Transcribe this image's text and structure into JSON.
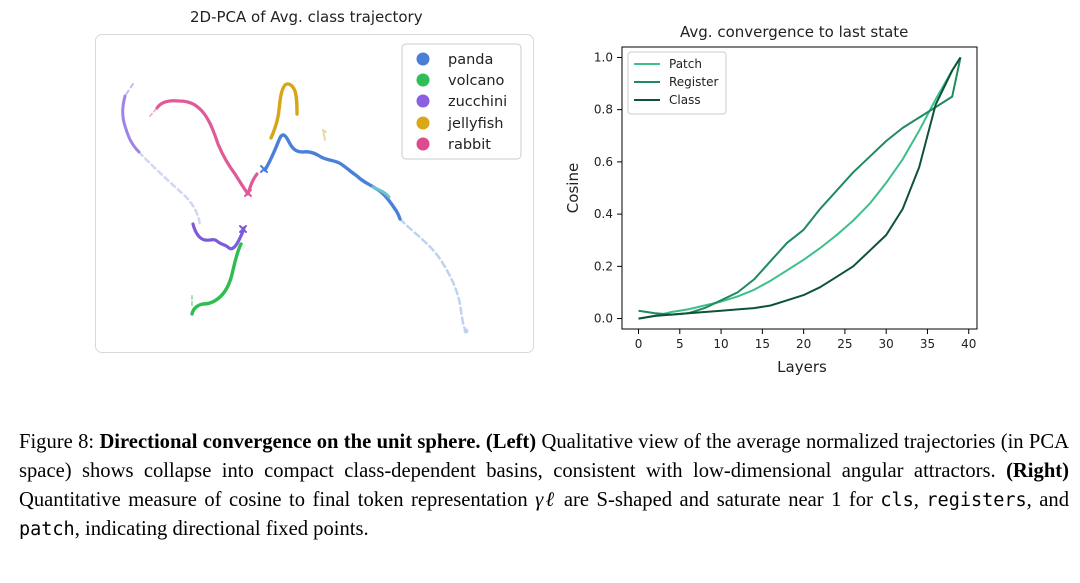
{
  "left_panel": {
    "title": "2D-PCA of Avg. class trajectory",
    "legend": [
      {
        "label": "panda",
        "color": "#4a7fd6"
      },
      {
        "label": "volcano",
        "color": "#2ebf57"
      },
      {
        "label": "zucchini",
        "color": "#8a5fe0"
      },
      {
        "label": "jellyfish",
        "color": "#d9a817"
      },
      {
        "label": "rabbit",
        "color": "#df4a8e"
      }
    ]
  },
  "chart_data": {
    "type": "line",
    "title": "Avg. convergence to last state",
    "xlabel": "Layers",
    "ylabel": "Cosine",
    "xlim": [
      -2,
      41
    ],
    "ylim": [
      -0.04,
      1.04
    ],
    "xticks": [
      "0",
      "5",
      "10",
      "15",
      "20",
      "25",
      "30",
      "35",
      "40"
    ],
    "yticks": [
      "0.0",
      "0.2",
      "0.4",
      "0.6",
      "0.8",
      "1.0"
    ],
    "legend_position": "top-left",
    "series": [
      {
        "name": "Patch",
        "color": "#3dbf8a",
        "x": [
          0,
          2,
          4,
          6,
          8,
          10,
          12,
          14,
          16,
          18,
          20,
          22,
          24,
          26,
          28,
          30,
          32,
          34,
          36,
          38,
          39
        ],
        "y": [
          0.0,
          0.01,
          0.025,
          0.035,
          0.05,
          0.065,
          0.085,
          0.11,
          0.145,
          0.185,
          0.225,
          0.27,
          0.32,
          0.375,
          0.44,
          0.52,
          0.61,
          0.72,
          0.84,
          0.95,
          1.0
        ]
      },
      {
        "name": "Register",
        "color": "#1f8a5e",
        "x": [
          0,
          2,
          4,
          6,
          8,
          10,
          12,
          14,
          16,
          18,
          20,
          22,
          24,
          26,
          28,
          30,
          32,
          34,
          36,
          38,
          39
        ],
        "y": [
          0.03,
          0.02,
          0.015,
          0.02,
          0.04,
          0.07,
          0.1,
          0.15,
          0.22,
          0.29,
          0.34,
          0.42,
          0.49,
          0.56,
          0.62,
          0.68,
          0.73,
          0.77,
          0.81,
          0.85,
          1.0
        ]
      },
      {
        "name": "Class",
        "color": "#0f5236",
        "x": [
          0,
          2,
          4,
          6,
          8,
          10,
          12,
          14,
          16,
          18,
          20,
          22,
          24,
          26,
          28,
          30,
          32,
          34,
          36,
          38,
          39
        ],
        "y": [
          0.0,
          0.01,
          0.015,
          0.02,
          0.025,
          0.03,
          0.035,
          0.04,
          0.05,
          0.07,
          0.09,
          0.12,
          0.16,
          0.2,
          0.26,
          0.32,
          0.42,
          0.58,
          0.82,
          0.95,
          1.0
        ]
      }
    ]
  },
  "caption": {
    "figure_label": "Figure 8: ",
    "bold_title": "Directional convergence on the unit sphere.",
    "left_tag": "(Left)",
    "left_text": " Qualitative view of the average normalized trajectories (in PCA space) shows collapse into compact class-dependent basins, consistent with low-dimensional angular attractors. ",
    "right_tag": "(Right)",
    "right_text_1": " Quantitative measure of cosine to final token representation ",
    "symbol": "γℓ",
    "right_text_2": " are S-shaped and saturate near ",
    "one": "1",
    "right_text_3": " for ",
    "code_cls": "cls",
    "comma1": ", ",
    "code_registers": "registers",
    "right_text_4": ", and ",
    "code_patch": "patch",
    "right_text_5": ", indicating directional fixed points."
  }
}
